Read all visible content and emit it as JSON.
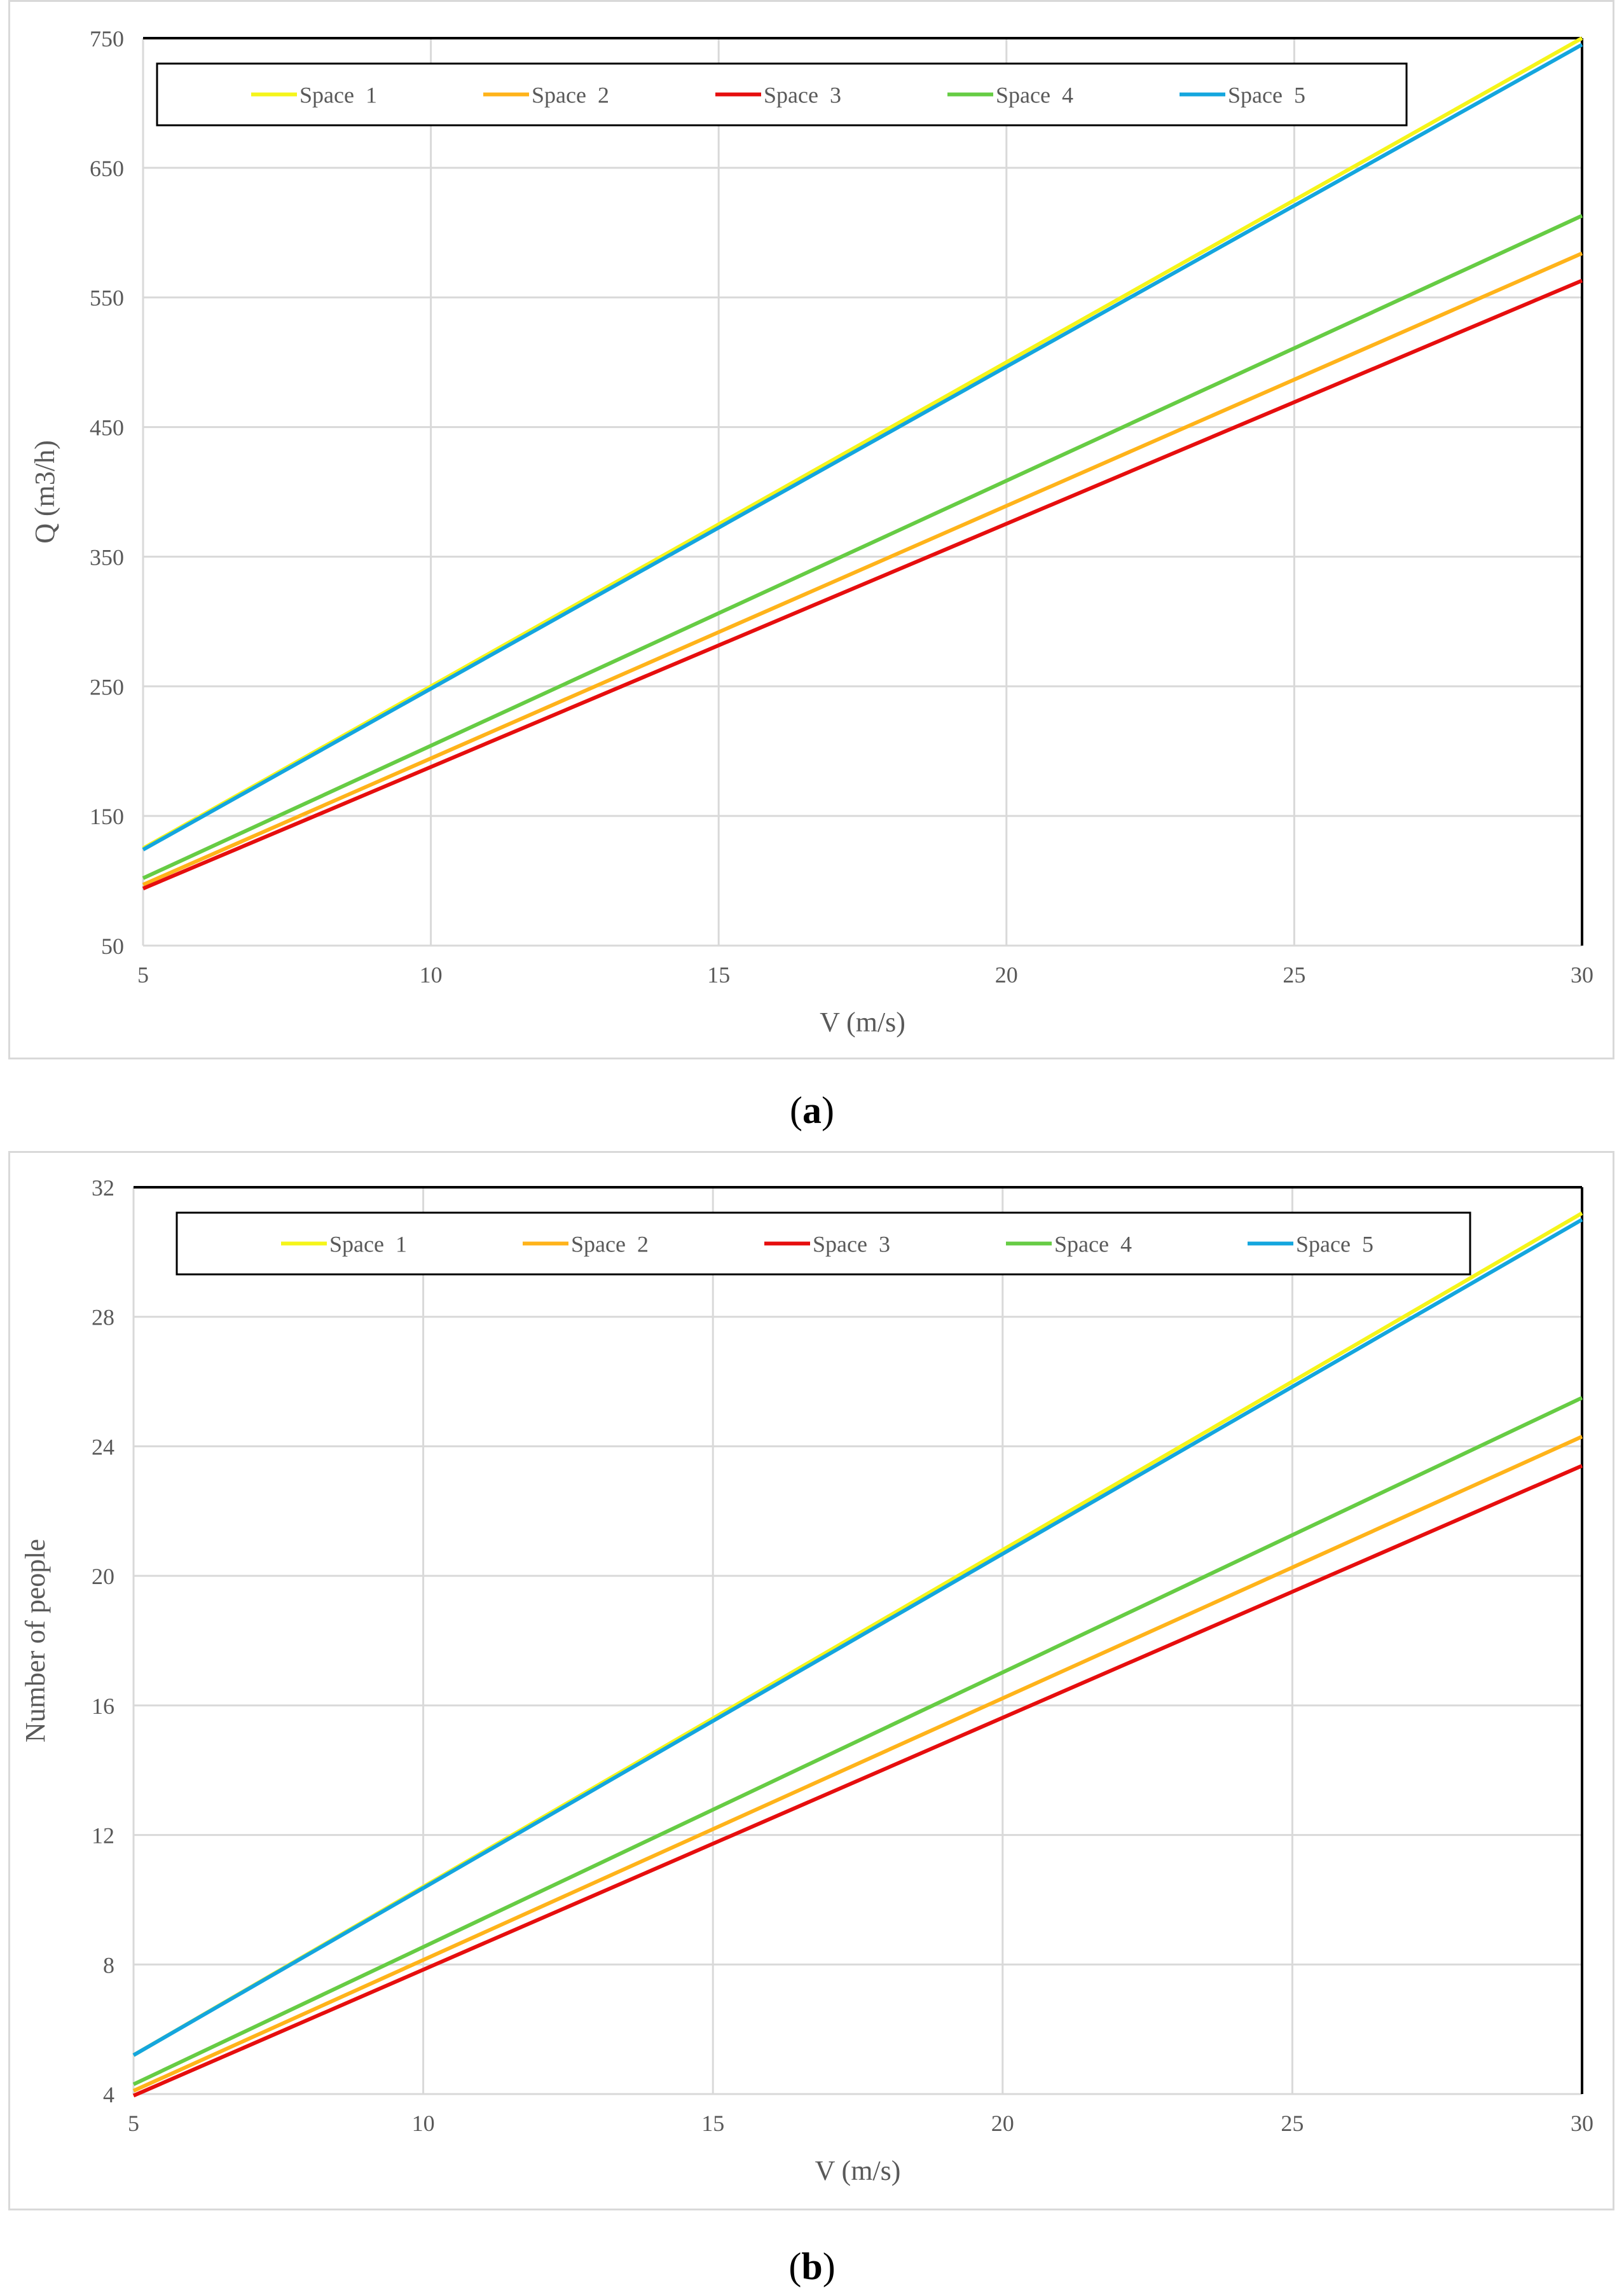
{
  "captions": {
    "a": "a",
    "b": "b"
  },
  "colors": {
    "Space 1": "#f5f51a",
    "Space 2": "#ffb31a",
    "Space 3": "#e60e0e",
    "Space 4": "#66cc44",
    "Space 5": "#14a6de",
    "grid": "#d9d9d9",
    "axis_text": "#595959"
  },
  "chart_data": [
    {
      "type": "line",
      "title": "",
      "xlabel": "V (m/s)",
      "ylabel": "Q (m3/h)",
      "xlim": [
        5,
        30
      ],
      "ylim": [
        50,
        750
      ],
      "xticks": [
        5,
        10,
        15,
        20,
        25,
        30
      ],
      "yticks": [
        50,
        150,
        250,
        350,
        450,
        550,
        650,
        750
      ],
      "grid": true,
      "legend": "top, inside, single row",
      "x": [
        5,
        30
      ],
      "series": [
        {
          "name": "Space  1",
          "values": [
            125,
            750
          ]
        },
        {
          "name": "Space  2",
          "values": [
            97,
            584
          ]
        },
        {
          "name": "Space  3",
          "values": [
            94,
            563
          ]
        },
        {
          "name": "Space  4",
          "values": [
            102,
            613
          ]
        },
        {
          "name": "Space  5",
          "values": [
            124,
            745
          ]
        }
      ]
    },
    {
      "type": "line",
      "title": "",
      "xlabel": "V (m/s)",
      "ylabel": "Number of people",
      "xlim": [
        5,
        30
      ],
      "ylim": [
        4,
        32
      ],
      "xticks": [
        5,
        10,
        15,
        20,
        25,
        30
      ],
      "yticks": [
        4,
        8,
        12,
        16,
        20,
        24,
        28,
        32
      ],
      "grid": true,
      "legend": "top, inside, single row",
      "x": [
        5,
        30
      ],
      "series": [
        {
          "name": "Space  1",
          "values": [
            5.2,
            31.2
          ]
        },
        {
          "name": "Space  2",
          "values": [
            4.1,
            24.3
          ]
        },
        {
          "name": "Space  3",
          "values": [
            3.95,
            23.4
          ]
        },
        {
          "name": "Space  4",
          "values": [
            4.3,
            25.5
          ]
        },
        {
          "name": "Space  5",
          "values": [
            5.2,
            31.0
          ]
        }
      ]
    }
  ]
}
